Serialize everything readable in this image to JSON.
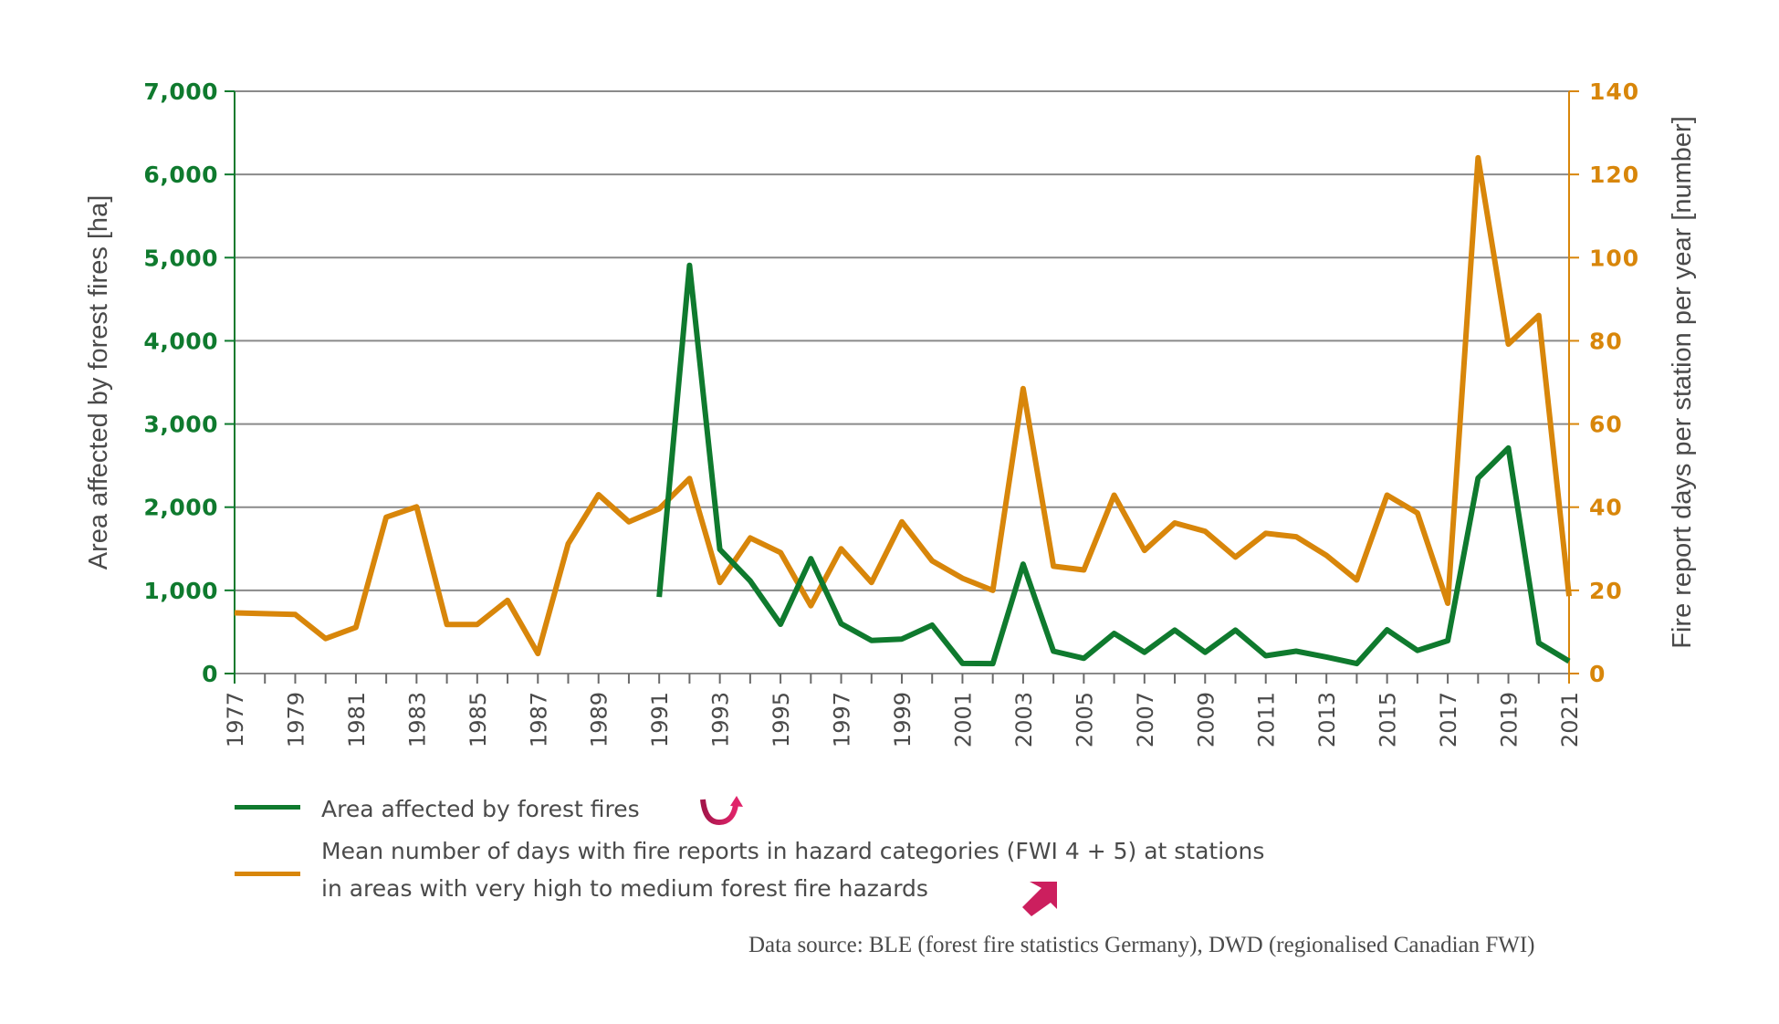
{
  "chart_data": {
    "type": "line",
    "title": "",
    "x": [
      1977,
      1978,
      1979,
      1980,
      1981,
      1982,
      1983,
      1984,
      1985,
      1986,
      1987,
      1988,
      1989,
      1990,
      1991,
      1992,
      1993,
      1994,
      1995,
      1996,
      1997,
      1998,
      1999,
      2000,
      2001,
      2002,
      2003,
      2004,
      2005,
      2006,
      2007,
      2008,
      2009,
      2010,
      2011,
      2012,
      2013,
      2014,
      2015,
      2016,
      2017,
      2018,
      2019,
      2020,
      2021
    ],
    "x_tick_labels": [
      "1977",
      "1979",
      "1981",
      "1983",
      "1985",
      "1987",
      "1989",
      "1991",
      "1993",
      "1995",
      "1997",
      "1999",
      "2001",
      "2003",
      "2005",
      "2007",
      "2009",
      "2011",
      "2013",
      "2015",
      "2017",
      "2019",
      "2021"
    ],
    "xlim": [
      1977,
      2021
    ],
    "y_left": {
      "label": "Area affected by forest fires [ha]",
      "lim": [
        0,
        7000
      ],
      "ticks": [
        0,
        1000,
        2000,
        3000,
        4000,
        5000,
        6000,
        7000
      ],
      "tick_labels": [
        "0",
        "1,000",
        "2,000",
        "3,000",
        "4,000",
        "5,000",
        "6,000",
        "7,000"
      ],
      "color": "#0f7a2e"
    },
    "y_right": {
      "label": "Fire report days per station per year [number]",
      "lim": [
        0,
        140
      ],
      "ticks": [
        0,
        20,
        40,
        60,
        80,
        100,
        120,
        140
      ],
      "tick_labels": [
        "0",
        "20",
        "40",
        "60",
        "80",
        "100",
        "120",
        "140"
      ],
      "color": "#d8860a"
    },
    "grid": true,
    "series": [
      {
        "name": "Area affected by forest fires",
        "axis": "left",
        "color": "#0f7a2e",
        "values": [
          null,
          null,
          null,
          null,
          null,
          null,
          null,
          null,
          null,
          null,
          null,
          null,
          null,
          null,
          920,
          4908,
          1493,
          1114,
          592,
          1381,
          599,
          397,
          415,
          581,
          122,
          120,
          1315,
          269,
          183,
          482,
          256,
          522,
          256,
          522,
          214,
          269,
          199,
          120,
          526,
          278,
          395,
          2349,
          2711,
          368,
          148
        ]
      },
      {
        "name": "Mean number of days with fire reports in hazard categories (FWI 4 + 5) at stations in areas with very high to medium forest fire hazards",
        "axis": "right",
        "color": "#d8860a",
        "values": [
          14.6,
          14.4,
          14.2,
          8.4,
          11.1,
          37.6,
          40.1,
          11.8,
          11.8,
          17.6,
          4.8,
          31.2,
          43.0,
          36.5,
          39.6,
          46.9,
          21.9,
          32.6,
          29.1,
          16.3,
          30.0,
          21.9,
          36.5,
          27.1,
          22.9,
          20.0,
          68.5,
          25.8,
          24.9,
          42.9,
          29.6,
          36.2,
          34.2,
          28.0,
          33.7,
          32.9,
          28.4,
          22.5,
          42.9,
          38.6,
          16.9,
          124.0,
          79.2,
          86.1,
          18.6
        ]
      }
    ],
    "legend": "bottom-left",
    "annotations": [
      "Data source: BLE (forest fire statistics Germany), DWD (regionalised Canadian FWI)"
    ]
  },
  "legend": {
    "items": [
      {
        "label": "Area affected by forest fires",
        "color": "#0f7a2e",
        "trend_icon": "u-turn-arrow-icon"
      },
      {
        "label_line1": "Mean number of days with fire reports in hazard categories (FWI 4 + 5) at stations",
        "label_line2": "in areas with very high to medium forest fire hazards",
        "color": "#d8860a",
        "trend_icon": "diagonal-up-arrow-icon"
      }
    ],
    "icon_color": "#cc1f5e"
  },
  "source": "Data source: BLE (forest fire statistics Germany), DWD (regionalised Canadian FWI)"
}
